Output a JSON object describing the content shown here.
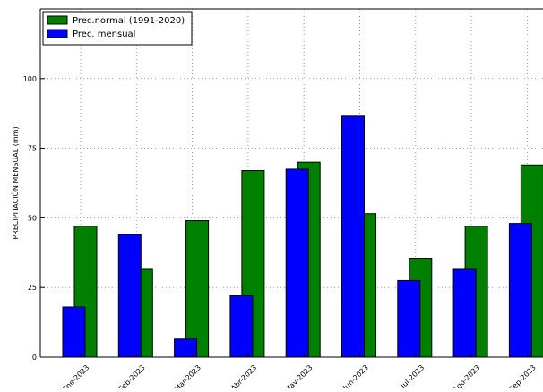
{
  "chart_data": {
    "type": "bar",
    "title": "",
    "xlabel": "",
    "ylabel": "PRECIPITACIÓN MENSUAL (mm)",
    "ylim": [
      0,
      125
    ],
    "yticks": [
      0,
      25,
      50,
      75,
      100
    ],
    "grid": true,
    "legend_position": "top-left",
    "categories": [
      "Ene-2023",
      "Feb-2023",
      "Mar-2023",
      "Abr-2023",
      "May-2023",
      "Jun-2023",
      "Jul-2023",
      "Ago-2023",
      "Sep-2023"
    ],
    "series": [
      {
        "name": "Prec.normal (1991-2020)",
        "color": "#008000",
        "values": [
          47,
          31.5,
          49,
          67,
          70,
          51.5,
          35.5,
          47,
          69
        ]
      },
      {
        "name": "Prec. mensual",
        "color": "#0000ff",
        "values": [
          18,
          44,
          6.5,
          22,
          67.5,
          86.5,
          27.5,
          31.5,
          48
        ]
      }
    ]
  }
}
